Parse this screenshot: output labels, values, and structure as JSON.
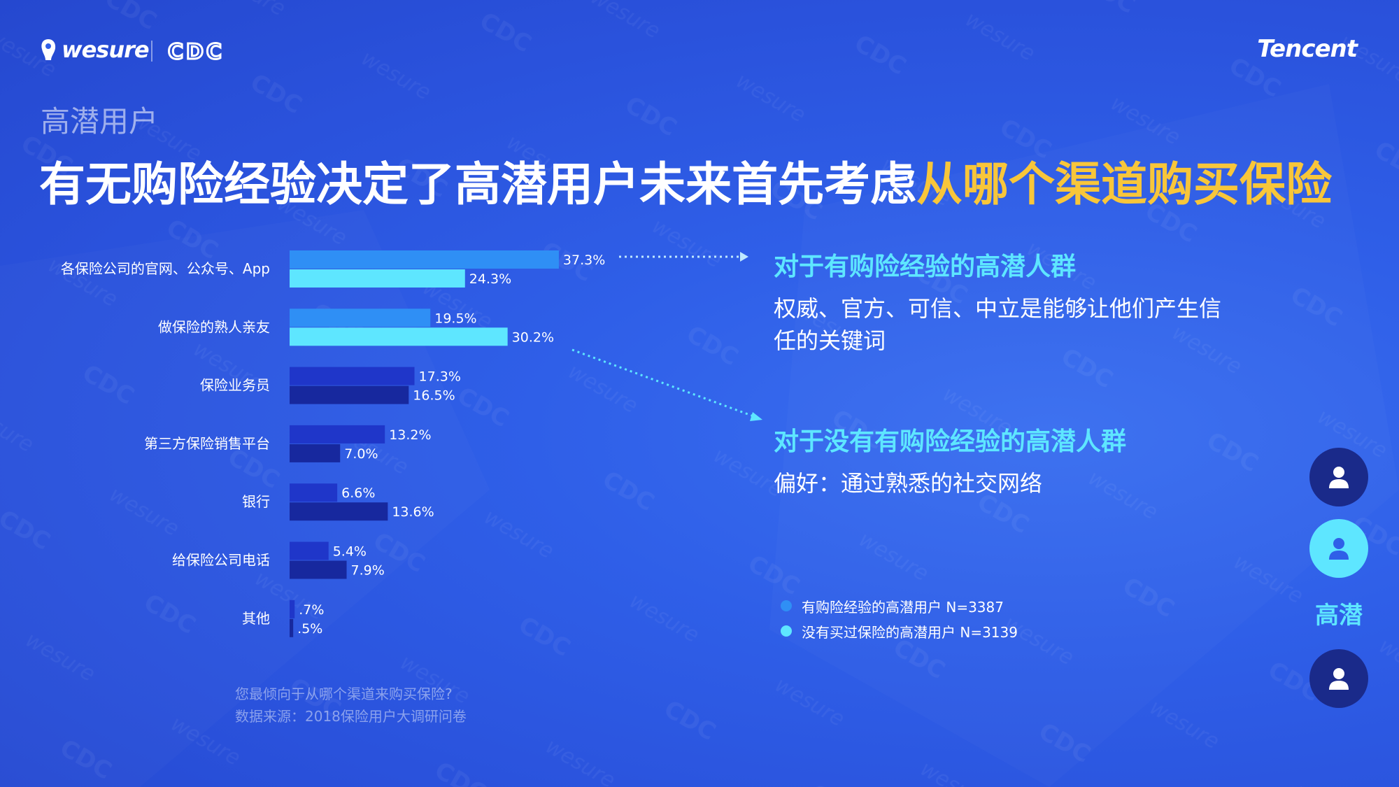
{
  "brand": {
    "wesure": "wesure",
    "cdc": "CDC",
    "tencent": "Tencent"
  },
  "kicker": "高潜用户",
  "headline": {
    "main": "有无购险经验决定了高潜用户未来首先考虑",
    "highlight": "从哪个渠道购买保险"
  },
  "chart_data": {
    "type": "bar",
    "orientation": "horizontal",
    "categories": [
      "各保险公司的官网、公众号、App",
      "做保险的熟人亲友",
      "保险业务员",
      "第三方保险销售平台",
      "银行",
      "给保险公司电话",
      "其他"
    ],
    "series": [
      {
        "name": "有购险经验的高潜用户 N=3387",
        "values": [
          37.3,
          19.5,
          17.3,
          13.2,
          6.6,
          5.4,
          0.7
        ],
        "labels": [
          "37.3%",
          "19.5%",
          "17.3%",
          "13.2%",
          "6.6%",
          "5.4%",
          ".7%"
        ]
      },
      {
        "name": "没有买过保险的高潜用户 N=3139",
        "values": [
          24.3,
          30.2,
          16.5,
          7.0,
          13.6,
          7.9,
          0.5
        ],
        "labels": [
          "24.3%",
          "30.2%",
          "16.5%",
          "7.0%",
          "13.6%",
          "7.9%",
          ".5%"
        ]
      }
    ],
    "highlight_rows": 2,
    "colors": {
      "highlight": [
        "#2f8ff5",
        "#5ee6ff"
      ],
      "normal": [
        "#1f36c9",
        "#17289e"
      ]
    },
    "xlim": [
      0,
      40
    ]
  },
  "callouts": [
    {
      "title": "对于有购险经验的高潜人群",
      "body": "权威、官方、可信、中立是能够让他们产生信任的关键词"
    },
    {
      "title": "对于没有有购险经验的高潜人群",
      "body": "偏好：通过熟悉的社交网络"
    }
  ],
  "legend": [
    {
      "label": "有购险经验的高潜用户  N=3387",
      "color": "#2f8ff5"
    },
    {
      "label": "没有买过保险的高潜用户  N=3139",
      "color": "#5ee6ff"
    }
  ],
  "footnote": {
    "question": "您最倾向于从哪个渠道来购买保险?",
    "source": "数据来源：2018保险用户大调研问卷"
  },
  "avatars": [
    {
      "icon": "user-icon",
      "color": "#1a2a8a"
    },
    {
      "icon": "user-icon",
      "color": "#5ee6ff"
    },
    {
      "icon": "user-icon",
      "color": "#1a2a8a"
    }
  ],
  "avatar_label": "高潜"
}
